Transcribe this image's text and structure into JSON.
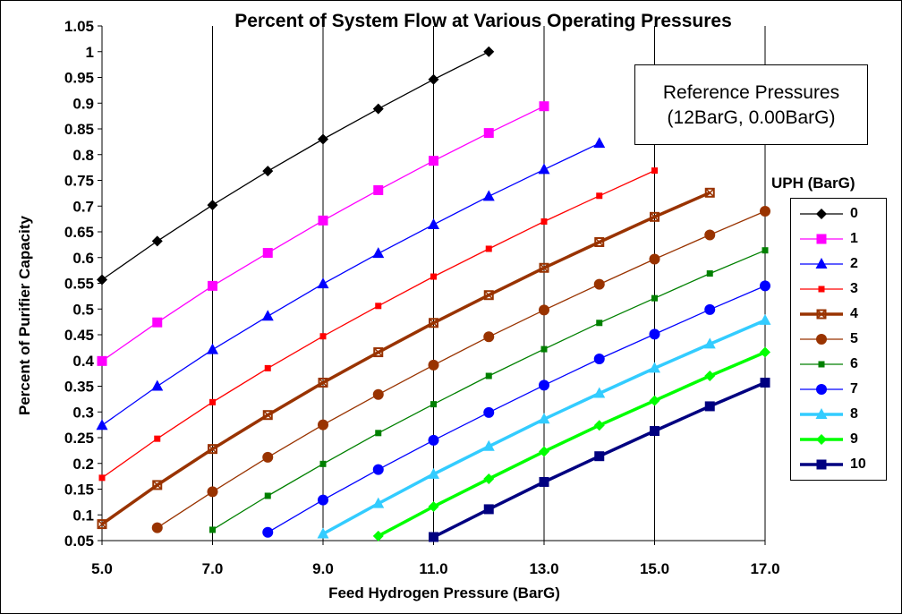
{
  "chart_data": {
    "type": "line",
    "title": "Percent of System Flow at Various Operating Pressures",
    "xlabel": "Feed Hydrogen Pressure (BarG)",
    "ylabel": "Percent of Purifier Capacity",
    "xlim": [
      5,
      17
    ],
    "ylim": [
      0.05,
      1.05
    ],
    "xticks": [
      "5.0",
      "7.0",
      "9.0",
      "11.0",
      "13.0",
      "15.0",
      "17.0"
    ],
    "xtick_values": [
      5,
      7,
      9,
      11,
      13,
      15,
      17
    ],
    "yticks": [
      "0.05",
      "0.1",
      "0.15",
      "0.2",
      "0.25",
      "0.3",
      "0.35",
      "0.4",
      "0.45",
      "0.5",
      "0.55",
      "0.6",
      "0.65",
      "0.7",
      "0.75",
      "0.8",
      "0.85",
      "0.9",
      "0.95",
      "1",
      "1.05"
    ],
    "ytick_values": [
      0.05,
      0.1,
      0.15,
      0.2,
      0.25,
      0.3,
      0.35,
      0.4,
      0.45,
      0.5,
      0.55,
      0.6,
      0.65,
      0.7,
      0.75,
      0.8,
      0.85,
      0.9,
      0.95,
      1.0,
      1.05
    ],
    "grid": {
      "vertical": true,
      "horizontal": false
    },
    "legend_title": "UPH (BarG)",
    "legend_position": "right",
    "annotation": {
      "line1": "Reference Pressures",
      "line2": "(12BarG, 0.00BarG)"
    },
    "series": [
      {
        "name": "0",
        "color": "#000000",
        "marker": "diamond",
        "width": "thin",
        "x": [
          5,
          6,
          7,
          8,
          9,
          10,
          11,
          12
        ],
        "y": [
          0.557,
          0.632,
          0.702,
          0.768,
          0.83,
          0.889,
          0.946,
          1.0
        ]
      },
      {
        "name": "1",
        "color": "#FF00FF",
        "marker": "square",
        "width": "thin",
        "x": [
          5,
          6,
          7,
          8,
          9,
          10,
          11,
          12,
          13
        ],
        "y": [
          0.399,
          0.474,
          0.545,
          0.609,
          0.672,
          0.731,
          0.788,
          0.842,
          0.894
        ]
      },
      {
        "name": "2",
        "color": "#0000FF",
        "marker": "triangle",
        "width": "thin",
        "x": [
          5,
          6,
          7,
          8,
          9,
          10,
          11,
          12,
          13,
          14
        ],
        "y": [
          0.274,
          0.35,
          0.421,
          0.486,
          0.549,
          0.608,
          0.664,
          0.719,
          0.771,
          0.822
        ]
      },
      {
        "name": "3",
        "color": "#FF0000",
        "marker": "small-square",
        "width": "thin",
        "x": [
          5,
          6,
          7,
          8,
          9,
          10,
          11,
          12,
          13,
          14,
          15
        ],
        "y": [
          0.172,
          0.248,
          0.319,
          0.385,
          0.447,
          0.506,
          0.563,
          0.617,
          0.67,
          0.72,
          0.769
        ]
      },
      {
        "name": "4",
        "color": "#993300",
        "marker": "x-square",
        "width": "thick",
        "x": [
          5,
          6,
          7,
          8,
          9,
          10,
          11,
          12,
          13,
          14,
          15,
          16
        ],
        "y": [
          0.082,
          0.158,
          0.228,
          0.294,
          0.357,
          0.416,
          0.473,
          0.527,
          0.58,
          0.63,
          0.679,
          0.726
        ]
      },
      {
        "name": "5",
        "color": "#993300",
        "marker": "circle",
        "width": "thin",
        "x": [
          6,
          7,
          8,
          9,
          10,
          11,
          12,
          13,
          14,
          15,
          16,
          17
        ],
        "y": [
          0.075,
          0.145,
          0.212,
          0.275,
          0.334,
          0.391,
          0.446,
          0.498,
          0.548,
          0.597,
          0.644,
          0.69
        ]
      },
      {
        "name": "6",
        "color": "#008000",
        "marker": "small-square",
        "width": "thin",
        "x": [
          7,
          8,
          9,
          10,
          11,
          12,
          13,
          14,
          15,
          16,
          17
        ],
        "y": [
          0.071,
          0.137,
          0.199,
          0.259,
          0.315,
          0.37,
          0.422,
          0.473,
          0.521,
          0.569,
          0.614
        ]
      },
      {
        "name": "7",
        "color": "#0000FF",
        "marker": "circle",
        "width": "thin",
        "x": [
          8,
          9,
          10,
          11,
          12,
          13,
          14,
          15,
          16,
          17
        ],
        "y": [
          0.066,
          0.129,
          0.188,
          0.245,
          0.299,
          0.352,
          0.403,
          0.451,
          0.499,
          0.545
        ]
      },
      {
        "name": "8",
        "color": "#33CCFF",
        "marker": "triangle",
        "width": "thick",
        "x": [
          9,
          10,
          11,
          12,
          13,
          14,
          15,
          16,
          17
        ],
        "y": [
          0.063,
          0.122,
          0.179,
          0.233,
          0.286,
          0.336,
          0.385,
          0.432,
          0.478
        ]
      },
      {
        "name": "9",
        "color": "#00FF00",
        "marker": "diamond",
        "width": "thick",
        "x": [
          10,
          11,
          12,
          13,
          14,
          15,
          16,
          17
        ],
        "y": [
          0.059,
          0.116,
          0.17,
          0.223,
          0.274,
          0.322,
          0.37,
          0.416
        ]
      },
      {
        "name": "10",
        "color": "#000080",
        "marker": "square",
        "width": "thick",
        "x": [
          11,
          12,
          13,
          14,
          15,
          16,
          17
        ],
        "y": [
          0.057,
          0.111,
          0.164,
          0.214,
          0.263,
          0.311,
          0.357
        ]
      }
    ]
  }
}
